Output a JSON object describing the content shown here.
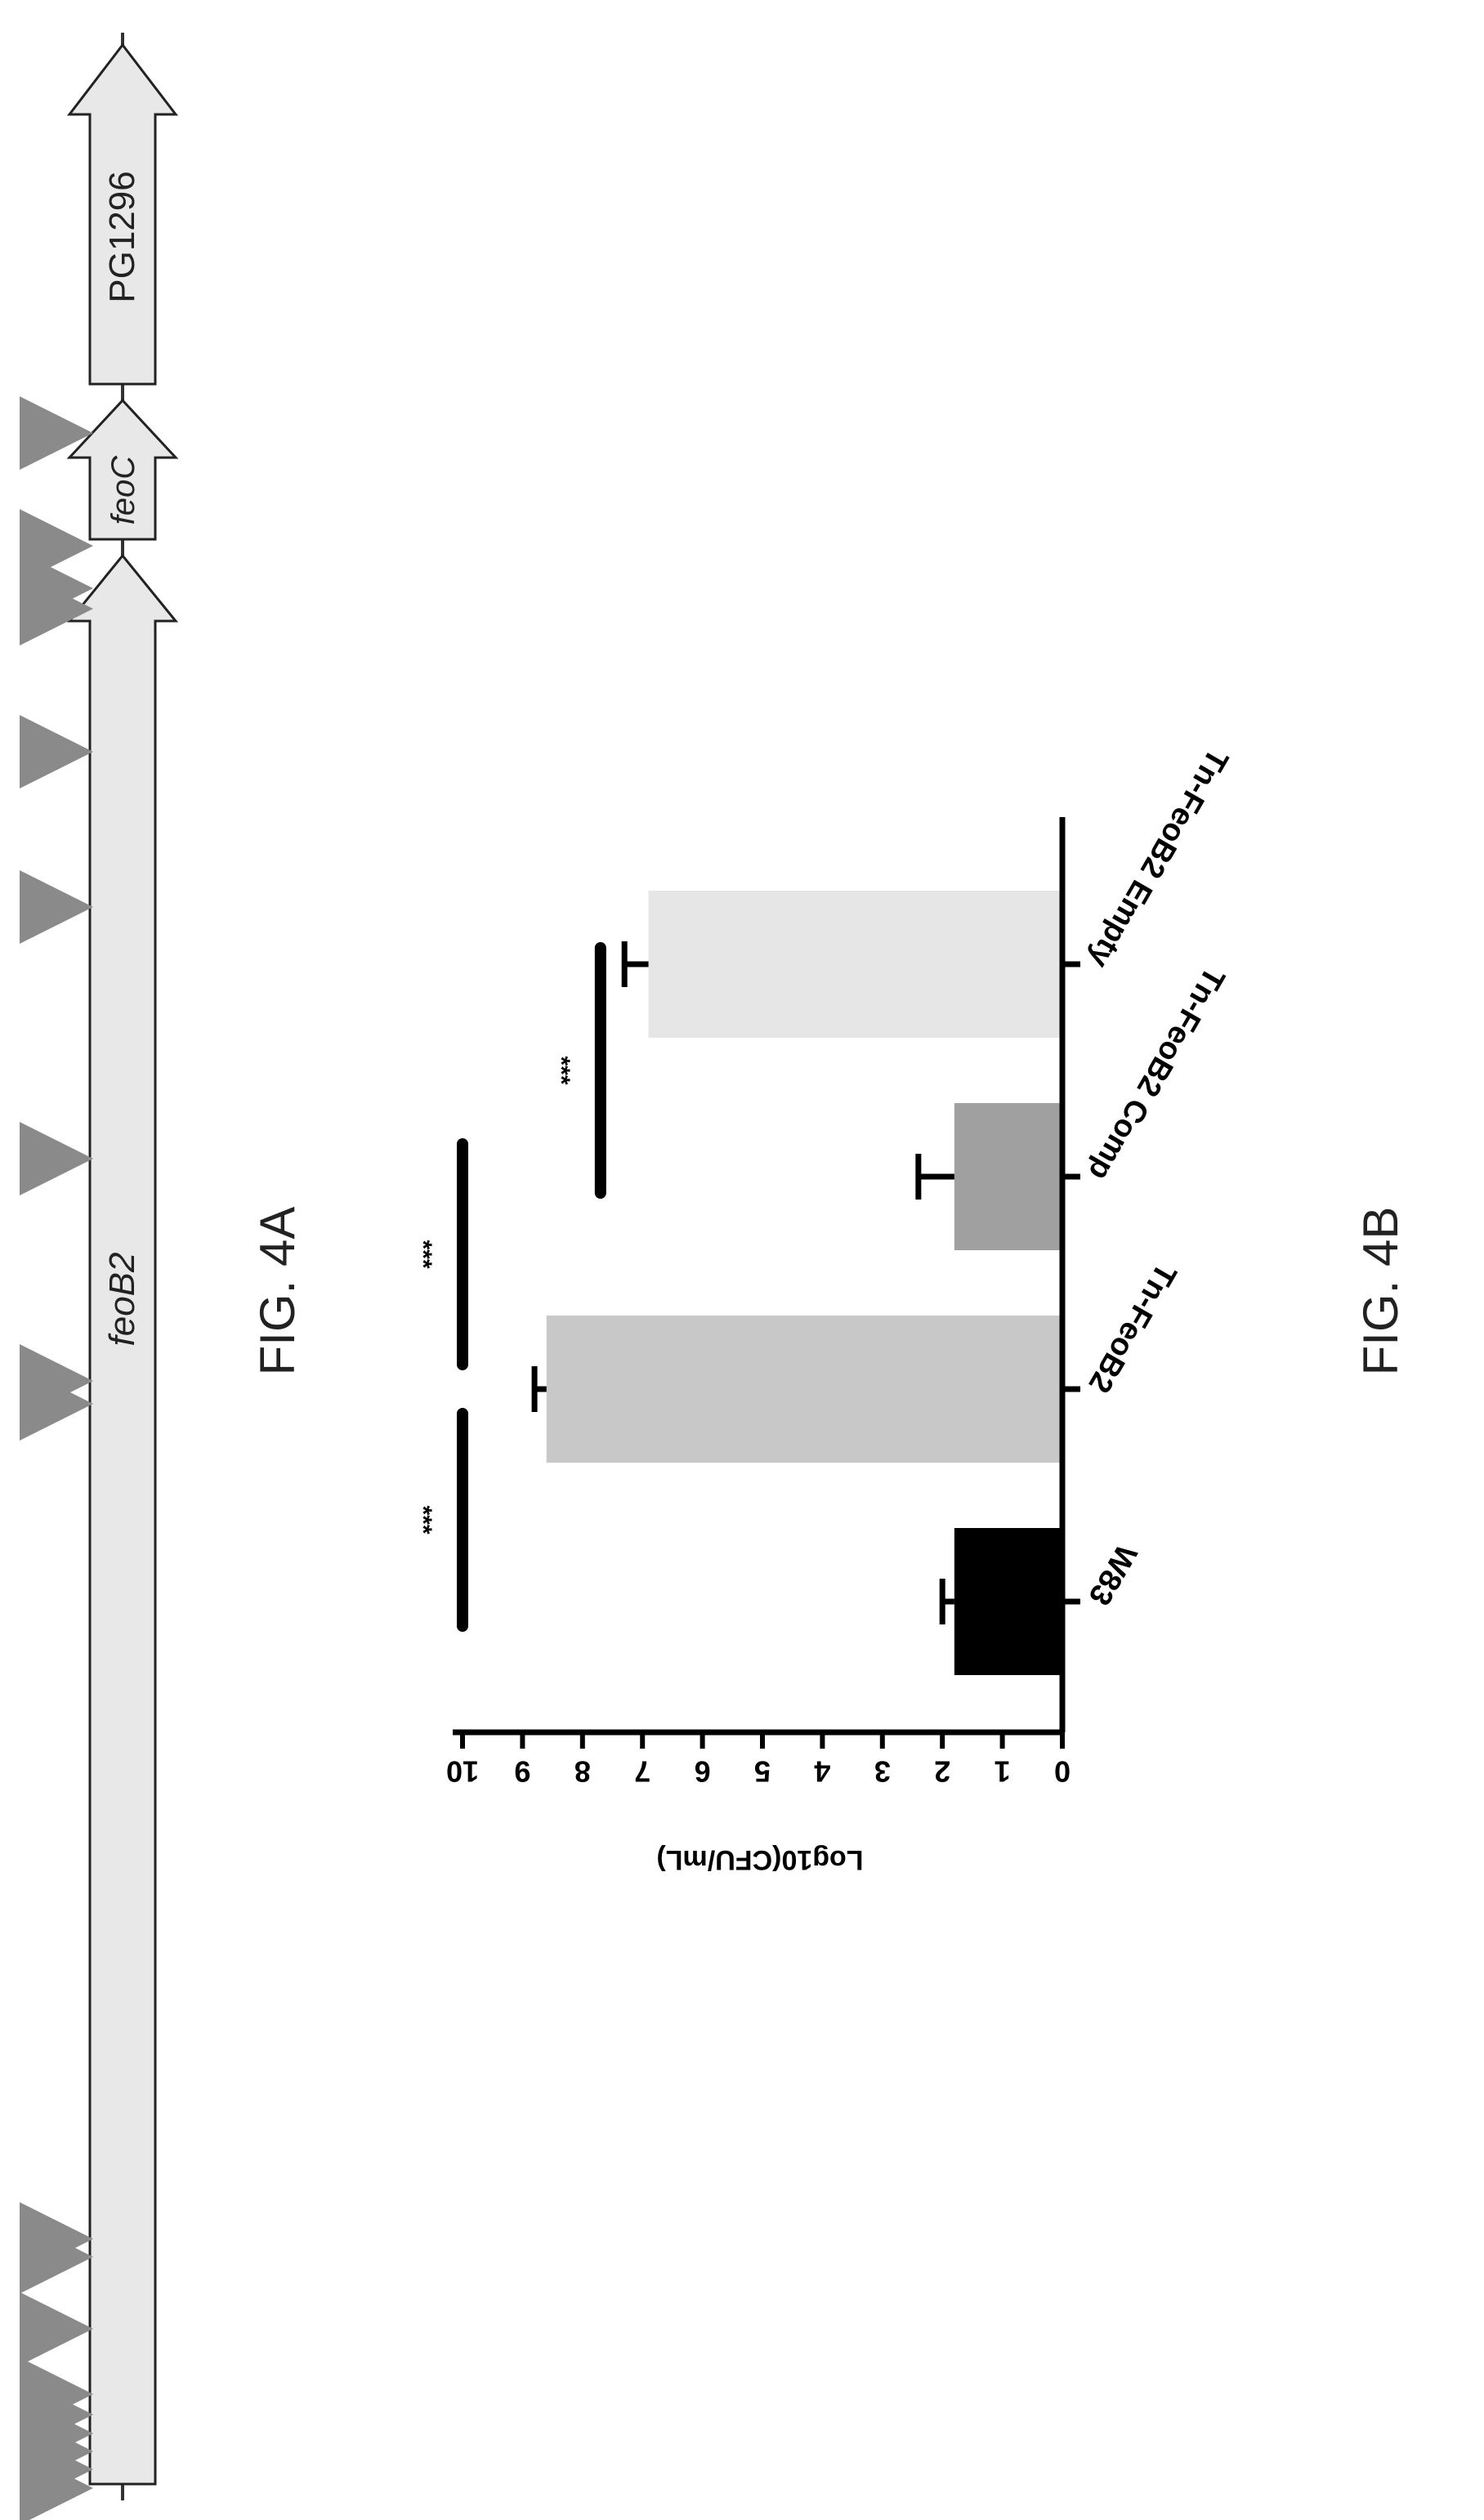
{
  "figure_4a": {
    "caption": "FIG. 4A",
    "genes": [
      {
        "name": "feoB2",
        "italic": true
      },
      {
        "name": "feoC",
        "italic": true
      },
      {
        "name": "PG1296",
        "italic": false
      }
    ]
  },
  "figure_4b": {
    "caption": "FIG. 4B"
  },
  "chart_data": {
    "type": "bar",
    "categories": [
      "W83",
      "Tn-FeoB2",
      "Tn-FeoB2 Comp",
      "Tn-FeoB2 Empty"
    ],
    "values": [
      1.8,
      8.6,
      1.8,
      6.9
    ],
    "errors": [
      0.2,
      0.2,
      0.6,
      0.4
    ],
    "bar_colors": [
      "#000000",
      "#c8c8c8",
      "#a0a0a0",
      "#e6e6e6"
    ],
    "ylabel": "Log10(CFU/mL)",
    "ylim": [
      0,
      10
    ],
    "yticks": [
      "0",
      "1",
      "2",
      "3",
      "4",
      "5",
      "6",
      "7",
      "8",
      "9",
      "10"
    ],
    "significance": [
      {
        "between": [
          "W83",
          "Tn-FeoB2"
        ],
        "label": "***"
      },
      {
        "between": [
          "Tn-FeoB2",
          "Tn-FeoB2 Comp"
        ],
        "label": "***"
      },
      {
        "between": [
          "Tn-FeoB2 Comp",
          "Tn-FeoB2 Empty"
        ],
        "label": "***"
      }
    ],
    "grid": false
  }
}
